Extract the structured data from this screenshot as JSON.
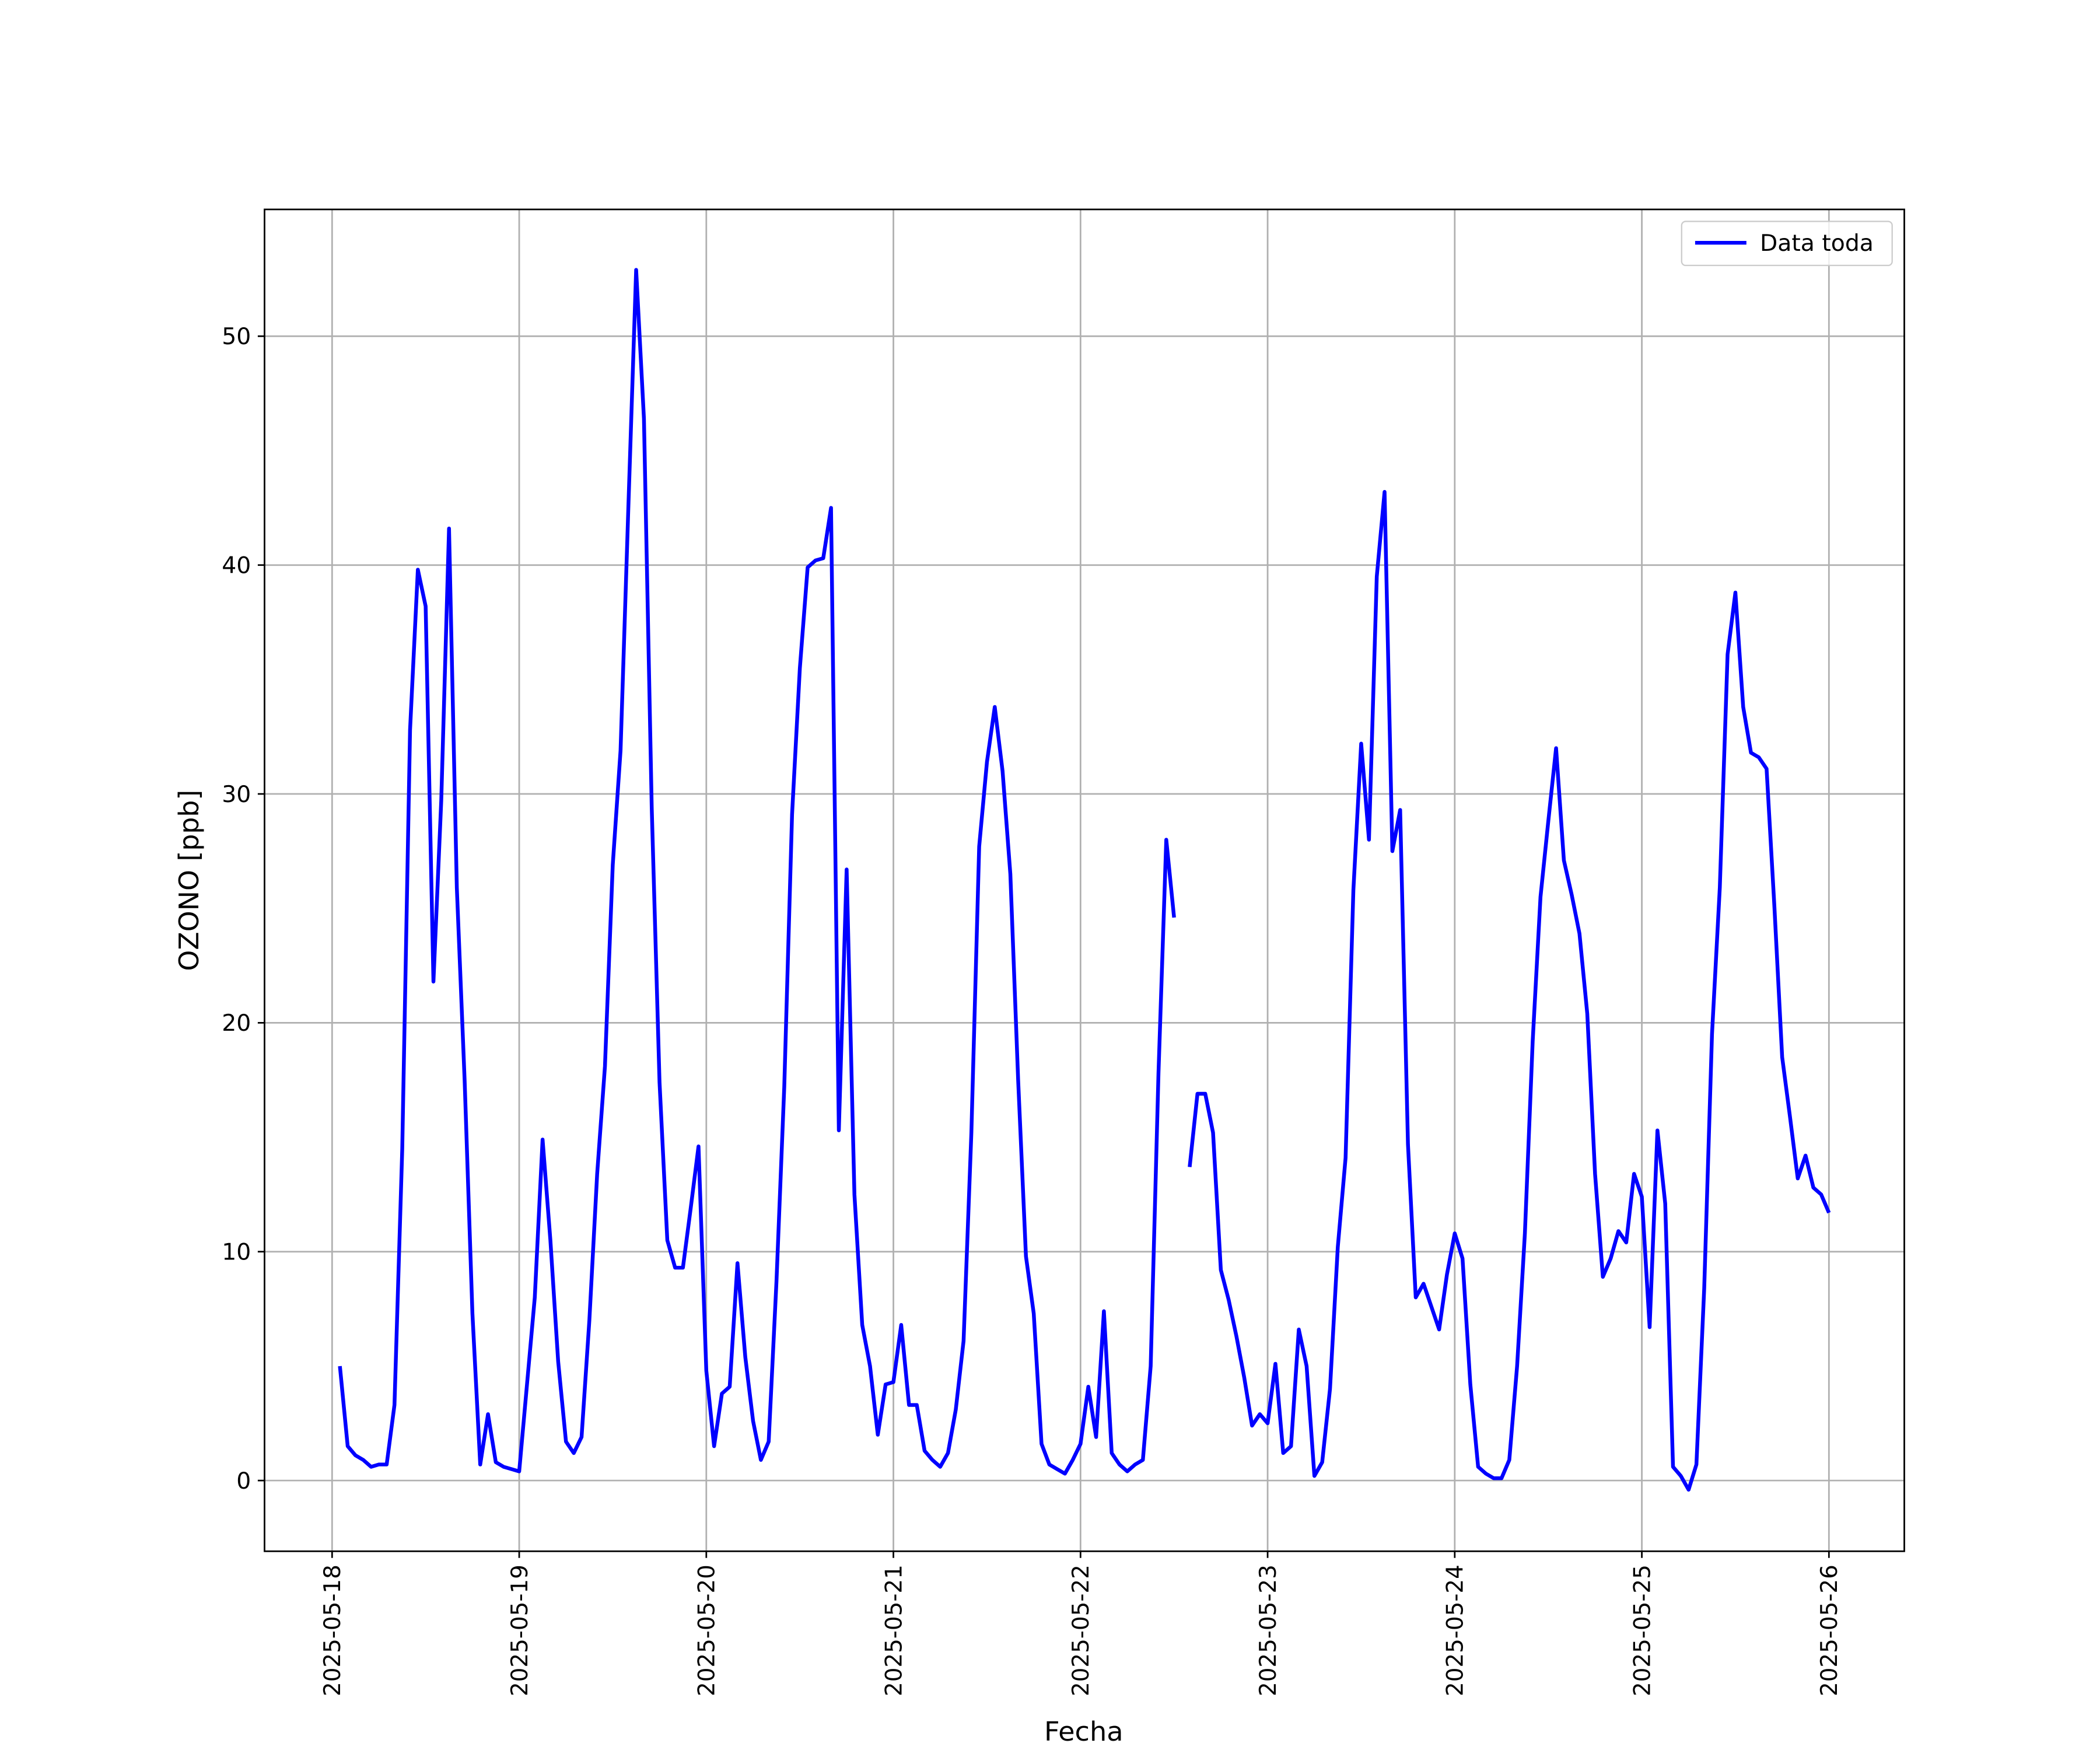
{
  "chart_data": {
    "type": "line",
    "xlabel": "Fecha",
    "ylabel": "OZONO [ppb]",
    "x": [
      "2025-05-18 01:00",
      "2025-05-18 02:00",
      "2025-05-18 03:00",
      "2025-05-18 04:00",
      "2025-05-18 05:00",
      "2025-05-18 06:00",
      "2025-05-18 07:00",
      "2025-05-18 08:00",
      "2025-05-18 09:00",
      "2025-05-18 10:00",
      "2025-05-18 11:00",
      "2025-05-18 12:00",
      "2025-05-18 13:00",
      "2025-05-18 14:00",
      "2025-05-18 15:00",
      "2025-05-18 16:00",
      "2025-05-18 17:00",
      "2025-05-18 18:00",
      "2025-05-18 19:00",
      "2025-05-18 20:00",
      "2025-05-18 21:00",
      "2025-05-18 22:00",
      "2025-05-18 23:00",
      "2025-05-19 00:00",
      "2025-05-19 01:00",
      "2025-05-19 02:00",
      "2025-05-19 03:00",
      "2025-05-19 04:00",
      "2025-05-19 05:00",
      "2025-05-19 06:00",
      "2025-05-19 07:00",
      "2025-05-19 08:00",
      "2025-05-19 09:00",
      "2025-05-19 10:00",
      "2025-05-19 11:00",
      "2025-05-19 12:00",
      "2025-05-19 13:00",
      "2025-05-19 14:00",
      "2025-05-19 15:00",
      "2025-05-19 16:00",
      "2025-05-19 17:00",
      "2025-05-19 18:00",
      "2025-05-19 19:00",
      "2025-05-19 20:00",
      "2025-05-19 21:00",
      "2025-05-19 22:00",
      "2025-05-19 23:00",
      "2025-05-20 00:00",
      "2025-05-20 01:00",
      "2025-05-20 02:00",
      "2025-05-20 03:00",
      "2025-05-20 04:00",
      "2025-05-20 05:00",
      "2025-05-20 06:00",
      "2025-05-20 07:00",
      "2025-05-20 08:00",
      "2025-05-20 09:00",
      "2025-05-20 10:00",
      "2025-05-20 11:00",
      "2025-05-20 12:00",
      "2025-05-20 13:00",
      "2025-05-20 14:00",
      "2025-05-20 15:00",
      "2025-05-20 16:00",
      "2025-05-20 17:00",
      "2025-05-20 18:00",
      "2025-05-20 19:00",
      "2025-05-20 20:00",
      "2025-05-20 21:00",
      "2025-05-20 22:00",
      "2025-05-20 23:00",
      "2025-05-21 00:00",
      "2025-05-21 01:00",
      "2025-05-21 02:00",
      "2025-05-21 03:00",
      "2025-05-21 04:00",
      "2025-05-21 05:00",
      "2025-05-21 06:00",
      "2025-05-21 07:00",
      "2025-05-21 08:00",
      "2025-05-21 09:00",
      "2025-05-21 10:00",
      "2025-05-21 11:00",
      "2025-05-21 12:00",
      "2025-05-21 13:00",
      "2025-05-21 14:00",
      "2025-05-21 15:00",
      "2025-05-21 16:00",
      "2025-05-21 17:00",
      "2025-05-21 18:00",
      "2025-05-21 19:00",
      "2025-05-21 20:00",
      "2025-05-21 21:00",
      "2025-05-21 22:00",
      "2025-05-21 23:00",
      "2025-05-22 00:00",
      "2025-05-22 01:00",
      "2025-05-22 02:00",
      "2025-05-22 03:00",
      "2025-05-22 04:00",
      "2025-05-22 05:00",
      "2025-05-22 06:00",
      "2025-05-22 07:00",
      "2025-05-22 08:00",
      "2025-05-22 09:00",
      "2025-05-22 10:00",
      "2025-05-22 11:00",
      "2025-05-22 12:00",
      "2025-05-22 13:00",
      "2025-05-22 14:00",
      "2025-05-22 15:00",
      "2025-05-22 16:00",
      "2025-05-22 17:00",
      "2025-05-22 18:00",
      "2025-05-22 19:00",
      "2025-05-22 20:00",
      "2025-05-22 21:00",
      "2025-05-22 22:00",
      "2025-05-22 23:00",
      "2025-05-23 00:00",
      "2025-05-23 01:00",
      "2025-05-23 02:00",
      "2025-05-23 03:00",
      "2025-05-23 04:00",
      "2025-05-23 05:00",
      "2025-05-23 06:00",
      "2025-05-23 07:00",
      "2025-05-23 08:00",
      "2025-05-23 09:00",
      "2025-05-23 10:00",
      "2025-05-23 11:00",
      "2025-05-23 12:00",
      "2025-05-23 13:00",
      "2025-05-23 14:00",
      "2025-05-23 15:00",
      "2025-05-23 16:00",
      "2025-05-23 17:00",
      "2025-05-23 18:00",
      "2025-05-23 19:00",
      "2025-05-23 20:00",
      "2025-05-23 21:00",
      "2025-05-23 22:00",
      "2025-05-23 23:00",
      "2025-05-24 00:00",
      "2025-05-24 01:00",
      "2025-05-24 02:00",
      "2025-05-24 03:00",
      "2025-05-24 04:00",
      "2025-05-24 05:00",
      "2025-05-24 06:00",
      "2025-05-24 07:00",
      "2025-05-24 08:00",
      "2025-05-24 09:00",
      "2025-05-24 10:00",
      "2025-05-24 11:00",
      "2025-05-24 12:00",
      "2025-05-24 13:00",
      "2025-05-24 14:00",
      "2025-05-24 15:00",
      "2025-05-24 16:00",
      "2025-05-24 17:00",
      "2025-05-24 18:00",
      "2025-05-24 19:00",
      "2025-05-24 20:00",
      "2025-05-24 21:00",
      "2025-05-24 22:00",
      "2025-05-24 23:00",
      "2025-05-25 00:00",
      "2025-05-25 01:00",
      "2025-05-25 02:00",
      "2025-05-25 03:00",
      "2025-05-25 04:00",
      "2025-05-25 05:00",
      "2025-05-25 06:00",
      "2025-05-25 07:00",
      "2025-05-25 08:00",
      "2025-05-25 09:00",
      "2025-05-25 10:00",
      "2025-05-25 11:00",
      "2025-05-25 12:00",
      "2025-05-25 13:00",
      "2025-05-25 14:00",
      "2025-05-25 15:00",
      "2025-05-25 16:00",
      "2025-05-25 17:00",
      "2025-05-25 18:00",
      "2025-05-25 19:00",
      "2025-05-25 20:00",
      "2025-05-25 21:00",
      "2025-05-25 22:00",
      "2025-05-25 23:00",
      "2025-05-26 00:00"
    ],
    "series": [
      {
        "name": "Data toda",
        "color": "#0000ff",
        "values": [
          5.0,
          1.5,
          1.1,
          0.9,
          0.6,
          0.7,
          0.7,
          3.3,
          14.5,
          32.8,
          39.8,
          38.2,
          21.8,
          29.7,
          41.6,
          25.9,
          17.5,
          7.3,
          0.7,
          2.9,
          0.8,
          0.6,
          0.5,
          0.4,
          4.2,
          8.0,
          14.9,
          10.5,
          5.2,
          1.7,
          1.2,
          1.9,
          7.0,
          13.4,
          18.1,
          26.9,
          31.9,
          42.5,
          52.9,
          46.4,
          29.4,
          17.4,
          10.5,
          9.3,
          9.3,
          11.9,
          14.6,
          4.8,
          1.5,
          3.8,
          4.1,
          9.5,
          5.4,
          2.6,
          0.9,
          1.7,
          8.7,
          17.2,
          29.1,
          35.5,
          39.9,
          40.2,
          40.3,
          42.5,
          15.3,
          26.7,
          12.5,
          6.8,
          5.0,
          2.0,
          4.2,
          4.3,
          6.8,
          3.3,
          3.3,
          1.3,
          0.9,
          0.6,
          1.2,
          3.1,
          6.1,
          15.2,
          27.7,
          31.4,
          33.8,
          31.0,
          26.5,
          17.5,
          9.8,
          7.3,
          1.6,
          0.7,
          0.5,
          0.3,
          0.9,
          1.6,
          4.1,
          1.9,
          7.4,
          1.2,
          0.7,
          0.4,
          0.7,
          0.9,
          5.0,
          17.8,
          28.0,
          24.6,
          null,
          13.7,
          16.9,
          16.9,
          15.2,
          9.2,
          7.9,
          6.3,
          4.5,
          2.4,
          2.9,
          2.5,
          5.1,
          1.2,
          1.5,
          6.6,
          5.0,
          0.2,
          0.8,
          4.0,
          10.2,
          14.1,
          25.8,
          32.2,
          28.0,
          39.5,
          43.2,
          27.5,
          29.3,
          14.7,
          8.0,
          8.6,
          7.6,
          6.6,
          9.0,
          10.8,
          9.7,
          4.2,
          0.6,
          0.3,
          0.1,
          0.1,
          0.9,
          5.0,
          10.8,
          19.2,
          25.5,
          28.8,
          32.0,
          27.1,
          25.6,
          23.9,
          20.4,
          13.4,
          8.9,
          9.7,
          10.9,
          10.4,
          13.4,
          12.4,
          6.7,
          15.3,
          12.1,
          0.6,
          0.2,
          -0.4,
          0.7,
          8.4,
          19.5,
          25.9,
          36.1,
          38.8,
          33.8,
          31.8,
          31.6,
          31.1,
          25.1,
          18.5,
          15.9,
          13.2,
          14.2,
          12.8,
          12.5,
          11.7
        ]
      }
    ],
    "xlim": [
      "2025-05-17 15:20",
      "2025-05-26 09:40"
    ],
    "xticks": [
      "2025-05-18",
      "2025-05-19",
      "2025-05-20",
      "2025-05-21",
      "2025-05-22",
      "2025-05-23",
      "2025-05-24",
      "2025-05-25",
      "2025-05-26"
    ],
    "ylim": [
      -3.09,
      55.54
    ],
    "yticks": [
      0,
      10,
      20,
      30,
      40,
      50
    ],
    "grid": true,
    "legend": "upper right"
  }
}
